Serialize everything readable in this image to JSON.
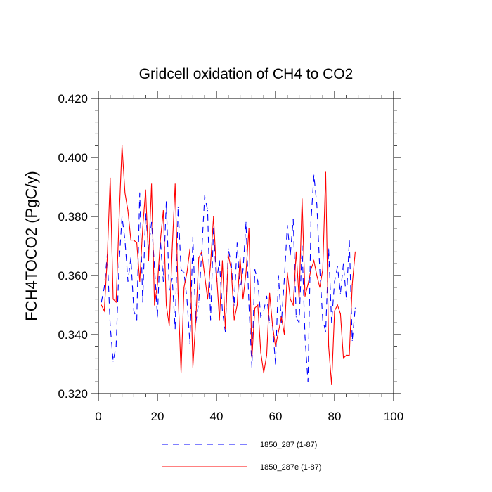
{
  "chart_data": {
    "type": "line",
    "title": "Gridcell oxidation of CH4 to CO2",
    "xlabel": "",
    "ylabel": "FCH4TOCO2  (PgC/y)",
    "xlim": [
      0,
      100
    ],
    "ylim": [
      0.32,
      0.42
    ],
    "x_ticks": [
      0,
      20,
      40,
      60,
      80,
      100
    ],
    "x_tick_labels": [
      "0",
      "20",
      "40",
      "60",
      "80",
      "100"
    ],
    "y_ticks": [
      0.32,
      0.34,
      0.36,
      0.38,
      0.4,
      0.42
    ],
    "y_tick_labels": [
      "0.320",
      "0.340",
      "0.360",
      "0.380",
      "0.400",
      "0.420"
    ],
    "x": [
      1,
      2,
      3,
      4,
      5,
      6,
      7,
      8,
      9,
      10,
      11,
      12,
      13,
      14,
      15,
      16,
      17,
      18,
      19,
      20,
      21,
      22,
      23,
      24,
      25,
      26,
      27,
      28,
      29,
      30,
      31,
      32,
      33,
      34,
      35,
      36,
      37,
      38,
      39,
      40,
      41,
      42,
      43,
      44,
      45,
      46,
      47,
      48,
      49,
      50,
      51,
      52,
      53,
      54,
      55,
      56,
      57,
      58,
      59,
      60,
      61,
      62,
      63,
      64,
      65,
      66,
      67,
      68,
      69,
      70,
      71,
      72,
      73,
      74,
      75,
      76,
      77,
      78,
      79,
      80,
      81,
      82,
      83,
      84,
      85,
      86,
      87
    ],
    "series": [
      {
        "name": "1850_287 (1-87)",
        "color": "#0000ff",
        "dash": "dashed",
        "values": [
          0.351,
          0.356,
          0.367,
          0.343,
          0.331,
          0.336,
          0.364,
          0.38,
          0.372,
          0.358,
          0.366,
          0.348,
          0.345,
          0.388,
          0.351,
          0.381,
          0.369,
          0.378,
          0.363,
          0.346,
          0.372,
          0.358,
          0.385,
          0.355,
          0.359,
          0.342,
          0.383,
          0.362,
          0.361,
          0.352,
          0.337,
          0.373,
          0.344,
          0.351,
          0.368,
          0.387,
          0.382,
          0.345,
          0.376,
          0.358,
          0.365,
          0.348,
          0.341,
          0.369,
          0.364,
          0.35,
          0.371,
          0.355,
          0.362,
          0.378,
          0.35,
          0.329,
          0.362,
          0.358,
          0.346,
          0.348,
          0.353,
          0.344,
          0.343,
          0.33,
          0.36,
          0.344,
          0.359,
          0.377,
          0.367,
          0.379,
          0.346,
          0.344,
          0.37,
          0.339,
          0.324,
          0.378,
          0.394,
          0.384,
          0.362,
          0.345,
          0.341,
          0.369,
          0.344,
          0.358,
          0.363,
          0.354,
          0.364,
          0.352,
          0.372,
          0.338,
          0.349
        ]
      },
      {
        "name": "1850_287e (1-87)",
        "color": "#ff0000",
        "dash": "solid",
        "values": [
          0.35,
          0.348,
          0.366,
          0.393,
          0.352,
          0.351,
          0.379,
          0.404,
          0.388,
          0.382,
          0.372,
          0.372,
          0.371,
          0.358,
          0.376,
          0.389,
          0.365,
          0.391,
          0.35,
          0.357,
          0.372,
          0.382,
          0.35,
          0.343,
          0.369,
          0.391,
          0.354,
          0.327,
          0.356,
          0.361,
          0.369,
          0.329,
          0.345,
          0.366,
          0.368,
          0.36,
          0.352,
          0.364,
          0.38,
          0.361,
          0.345,
          0.365,
          0.342,
          0.367,
          0.362,
          0.345,
          0.35,
          0.366,
          0.352,
          0.361,
          0.376,
          0.332,
          0.349,
          0.35,
          0.334,
          0.327,
          0.333,
          0.354,
          0.343,
          0.336,
          0.341,
          0.346,
          0.34,
          0.361,
          0.352,
          0.35,
          0.368,
          0.352,
          0.386,
          0.353,
          0.357,
          0.362,
          0.365,
          0.36,
          0.356,
          0.362,
          0.395,
          0.336,
          0.323,
          0.348,
          0.35,
          0.347,
          0.332,
          0.333,
          0.333,
          0.357,
          0.368
        ]
      }
    ],
    "legend": [
      {
        "label": "1850_287 (1-87)",
        "color": "#0000ff",
        "dash": "dashed"
      },
      {
        "label": "1850_287e (1-87)",
        "color": "#ff0000",
        "dash": "solid"
      }
    ],
    "grid": false,
    "legend_position": "bottom"
  }
}
